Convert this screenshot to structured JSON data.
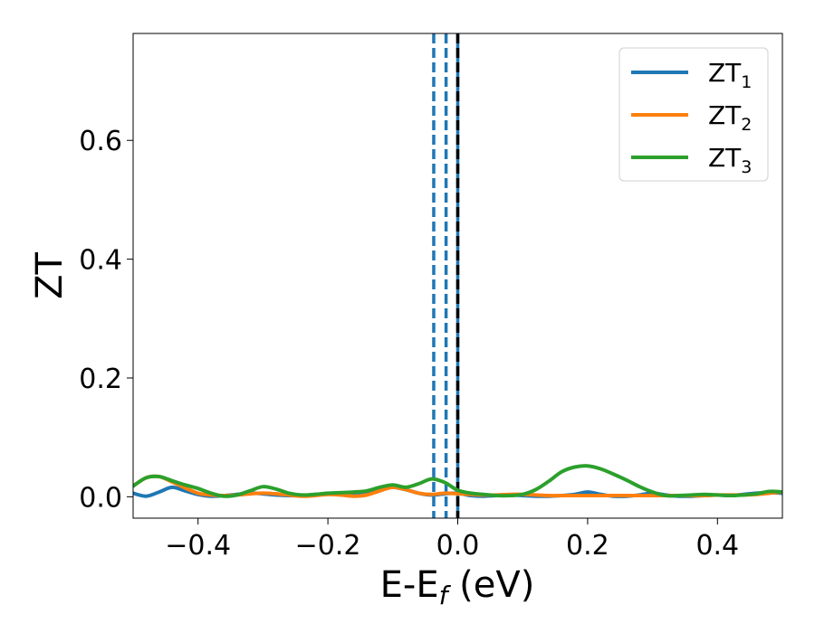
{
  "chart_data": {
    "type": "line",
    "title": "",
    "xlabel": {
      "main": "E-E",
      "sub": "f",
      "unit": " (eV)"
    },
    "ylabel": "ZT",
    "xlim": [
      -0.5,
      0.5
    ],
    "ylim": [
      -0.036,
      0.78
    ],
    "xticks": [
      -0.4,
      -0.2,
      0.0,
      0.2,
      0.4
    ],
    "xtick_labels": [
      "−0.4",
      "−0.2",
      "0.0",
      "0.2",
      "0.4"
    ],
    "yticks": [
      0.0,
      0.2,
      0.4,
      0.6
    ],
    "ytick_labels": [
      "0.0",
      "0.2",
      "0.4",
      "0.6"
    ],
    "grid": false,
    "legend_position": "top-right",
    "vlines": [
      {
        "x": -0.037,
        "color": "#1f77b4",
        "style": "dashed"
      },
      {
        "x": -0.018,
        "color": "#1f77b4",
        "style": "dashed"
      },
      {
        "x": 0.0,
        "color": "#1f77b4",
        "style": "solid"
      },
      {
        "x": 0.0,
        "color": "#000000",
        "style": "dashed"
      }
    ],
    "series": [
      {
        "name": "ZT1",
        "label_main": "ZT",
        "label_sub": "1",
        "color": "#1f77b4",
        "x": [
          -0.5,
          -0.48,
          -0.46,
          -0.44,
          -0.42,
          -0.4,
          -0.38,
          -0.36,
          -0.34,
          -0.32,
          -0.3,
          -0.28,
          -0.26,
          -0.24,
          -0.22,
          -0.2,
          -0.18,
          -0.16,
          -0.14,
          -0.12,
          -0.1,
          -0.08,
          -0.06,
          -0.04,
          -0.02,
          0.0,
          0.02,
          0.04,
          0.06,
          0.08,
          0.1,
          0.12,
          0.14,
          0.16,
          0.18,
          0.2,
          0.22,
          0.24,
          0.26,
          0.28,
          0.3,
          0.32,
          0.34,
          0.36,
          0.38,
          0.4,
          0.42,
          0.44,
          0.46,
          0.48,
          0.5
        ],
        "y": [
          0.006,
          0.001,
          0.008,
          0.016,
          0.01,
          0.004,
          0.001,
          0.002,
          0.004,
          0.006,
          0.005,
          0.003,
          0.002,
          0.002,
          0.004,
          0.005,
          0.004,
          0.006,
          0.009,
          0.013,
          0.016,
          0.012,
          0.006,
          0.003,
          0.005,
          0.006,
          0.002,
          0.001,
          0.002,
          0.003,
          0.002,
          0.001,
          0.001,
          0.002,
          0.004,
          0.008,
          0.004,
          0.001,
          0.001,
          0.003,
          0.006,
          0.003,
          0.001,
          0.001,
          0.002,
          0.003,
          0.002,
          0.004,
          0.006,
          0.007,
          0.006
        ]
      },
      {
        "name": "ZT2",
        "label_main": "ZT",
        "label_sub": "2",
        "color": "#ff7f0e",
        "x": [
          -0.5,
          -0.48,
          -0.46,
          -0.44,
          -0.42,
          -0.4,
          -0.38,
          -0.36,
          -0.34,
          -0.32,
          -0.3,
          -0.28,
          -0.26,
          -0.24,
          -0.22,
          -0.2,
          -0.18,
          -0.16,
          -0.14,
          -0.12,
          -0.1,
          -0.08,
          -0.06,
          -0.04,
          -0.02,
          0.0,
          0.02,
          0.04,
          0.06,
          0.08,
          0.1,
          0.12,
          0.14,
          0.16,
          0.18,
          0.2,
          0.22,
          0.24,
          0.26,
          0.28,
          0.3,
          0.32,
          0.34,
          0.36,
          0.38,
          0.4,
          0.42,
          0.44,
          0.46,
          0.48,
          0.5
        ],
        "y": [
          0.018,
          0.032,
          0.034,
          0.025,
          0.015,
          0.006,
          0.003,
          0.002,
          0.003,
          0.005,
          0.006,
          0.005,
          0.003,
          0.001,
          0.002,
          0.004,
          0.003,
          0.001,
          0.003,
          0.01,
          0.016,
          0.012,
          0.006,
          0.004,
          0.006,
          0.005,
          0.004,
          0.003,
          0.003,
          0.004,
          0.004,
          0.003,
          0.002,
          0.002,
          0.002,
          0.002,
          0.002,
          0.002,
          0.002,
          0.002,
          0.002,
          0.002,
          0.002,
          0.002,
          0.002,
          0.003,
          0.003,
          0.003,
          0.004,
          0.006,
          0.008
        ]
      },
      {
        "name": "ZT3",
        "label_main": "ZT",
        "label_sub": "3",
        "color": "#2ca02c",
        "x": [
          -0.5,
          -0.48,
          -0.46,
          -0.44,
          -0.42,
          -0.4,
          -0.38,
          -0.36,
          -0.34,
          -0.32,
          -0.3,
          -0.28,
          -0.26,
          -0.24,
          -0.22,
          -0.2,
          -0.18,
          -0.16,
          -0.14,
          -0.12,
          -0.1,
          -0.08,
          -0.06,
          -0.04,
          -0.02,
          0.0,
          0.02,
          0.04,
          0.06,
          0.08,
          0.1,
          0.12,
          0.14,
          0.16,
          0.18,
          0.2,
          0.22,
          0.24,
          0.26,
          0.28,
          0.3,
          0.32,
          0.34,
          0.36,
          0.38,
          0.4,
          0.42,
          0.44,
          0.46,
          0.48,
          0.5
        ],
        "y": [
          0.018,
          0.032,
          0.034,
          0.027,
          0.02,
          0.014,
          0.006,
          0.001,
          0.003,
          0.01,
          0.017,
          0.013,
          0.006,
          0.003,
          0.004,
          0.006,
          0.007,
          0.008,
          0.01,
          0.016,
          0.02,
          0.016,
          0.022,
          0.03,
          0.024,
          0.011,
          0.006,
          0.004,
          0.002,
          0.002,
          0.004,
          0.012,
          0.026,
          0.042,
          0.05,
          0.052,
          0.047,
          0.038,
          0.028,
          0.017,
          0.008,
          0.002,
          0.002,
          0.003,
          0.004,
          0.003,
          0.002,
          0.003,
          0.005,
          0.009,
          0.008
        ]
      }
    ]
  }
}
